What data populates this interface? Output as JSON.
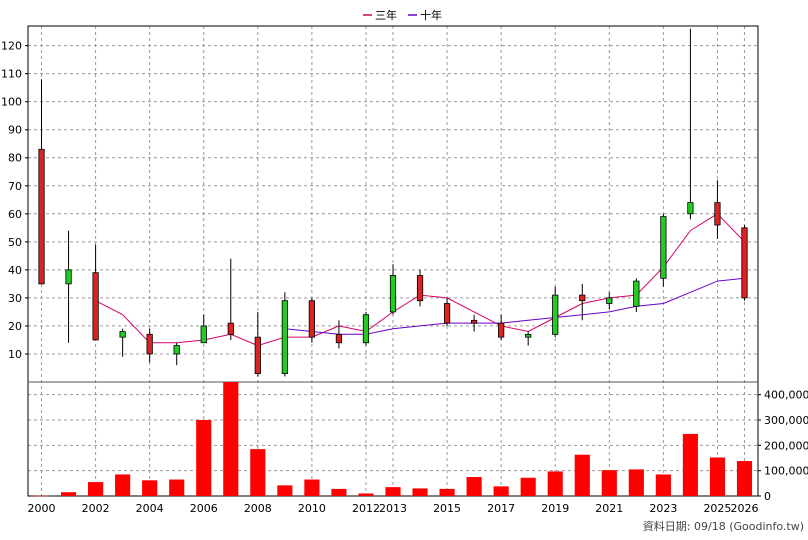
{
  "chart_data": {
    "type": "candlestick-with-volume",
    "legend": [
      {
        "name": "三年",
        "color": "#d6006b"
      },
      {
        "name": "十年",
        "color": "#6a00c8"
      }
    ],
    "credit": "資料日期: 09/18  (Goodinfo.tw)",
    "x_ticks": [
      "2000",
      "2002",
      "2004",
      "2006",
      "2008",
      "2010",
      "2012",
      "2013",
      "2015",
      "2017",
      "2019",
      "2021",
      "2023",
      "2025",
      "2026"
    ],
    "price_axis": {
      "ticks": [
        10,
        20,
        30,
        40,
        50,
        60,
        70,
        80,
        90,
        100,
        110,
        120
      ],
      "ylim": [
        0,
        127
      ]
    },
    "volume_axis": {
      "ticks": [
        0,
        100000,
        200000,
        300000,
        400000
      ],
      "tick_labels": [
        "0",
        "100,000",
        "200,000",
        "300,000",
        "400,000"
      ],
      "ylim": [
        0,
        450000
      ]
    },
    "colors": {
      "up": "#22cc22",
      "down": "#dd2222",
      "volume": "#ff0000",
      "grid": "#9a9a9a"
    },
    "candles": [
      {
        "x": "2000",
        "open": 83,
        "close": 35,
        "high": 108,
        "low": 35
      },
      {
        "x": "2001",
        "open": 35,
        "close": 40,
        "high": 54,
        "low": 14
      },
      {
        "x": "2002",
        "open": 39,
        "close": 15,
        "high": 49,
        "low": 15
      },
      {
        "x": "2003",
        "open": 16,
        "close": 18,
        "high": 19,
        "low": 9
      },
      {
        "x": "2004",
        "open": 17,
        "close": 10,
        "high": 19,
        "low": 7
      },
      {
        "x": "2005",
        "open": 10,
        "close": 13,
        "high": 14,
        "low": 6
      },
      {
        "x": "2006",
        "open": 14,
        "close": 20,
        "high": 24,
        "low": 14
      },
      {
        "x": "2007",
        "open": 21,
        "close": 17,
        "high": 44,
        "low": 15
      },
      {
        "x": "2008",
        "open": 16,
        "close": 3,
        "high": 25,
        "low": 2
      },
      {
        "x": "2009",
        "open": 3,
        "close": 29,
        "high": 32,
        "low": 2
      },
      {
        "x": "2010",
        "open": 29,
        "close": 16,
        "high": 30,
        "low": 14
      },
      {
        "x": "2011",
        "open": 17,
        "close": 14,
        "high": 22,
        "low": 12
      },
      {
        "x": "2012",
        "open": 14,
        "close": 24,
        "high": 25,
        "low": 13
      },
      {
        "x": "2013",
        "open": 25,
        "close": 38,
        "high": 42,
        "low": 24
      },
      {
        "x": "2014",
        "open": 38,
        "close": 29,
        "high": 40,
        "low": 27
      },
      {
        "x": "2015",
        "open": 28,
        "close": 21,
        "high": 30,
        "low": 20
      },
      {
        "x": "2016",
        "open": 22,
        "close": 21,
        "high": 24,
        "low": 18
      },
      {
        "x": "2017",
        "open": 21,
        "close": 16,
        "high": 24,
        "low": 15
      },
      {
        "x": "2018",
        "open": 16,
        "close": 17,
        "high": 18,
        "low": 13
      },
      {
        "x": "2019",
        "open": 17,
        "close": 31,
        "high": 34,
        "low": 16
      },
      {
        "x": "2020",
        "open": 31,
        "close": 29,
        "high": 35,
        "low": 22
      },
      {
        "x": "2021",
        "open": 28,
        "close": 30,
        "high": 32,
        "low": 26
      },
      {
        "x": "2022",
        "open": 27,
        "close": 36,
        "high": 37,
        "low": 25
      },
      {
        "x": "2023",
        "open": 37,
        "close": 59,
        "high": 60,
        "low": 34
      },
      {
        "x": "2024",
        "open": 60,
        "close": 64,
        "high": 126,
        "low": 58
      },
      {
        "x": "2025",
        "open": 64,
        "close": 56,
        "high": 72,
        "low": 51
      },
      {
        "x": "2026",
        "open": 55,
        "close": 30,
        "high": 56,
        "low": 29
      }
    ],
    "series": [
      {
        "name": "三年",
        "values": [
          null,
          null,
          29,
          24,
          14,
          14,
          15,
          17,
          13,
          16,
          16,
          20,
          18,
          25,
          31,
          30,
          25,
          20,
          18,
          23,
          28,
          30,
          31,
          41,
          54,
          60,
          50
        ]
      },
      {
        "name": "十年",
        "values": [
          null,
          null,
          null,
          null,
          null,
          null,
          null,
          null,
          null,
          19,
          18,
          17,
          17,
          19,
          20,
          21,
          21,
          21,
          22,
          23,
          24,
          25,
          27,
          28,
          32,
          36,
          37
        ]
      }
    ],
    "volume": [
      1000,
      15000,
      55000,
      85000,
      62000,
      65000,
      300000,
      450000,
      185000,
      42000,
      65000,
      28000,
      10000,
      35000,
      30000,
      28000,
      75000,
      38000,
      72000,
      97000,
      163000,
      102000,
      105000,
      85000,
      245000,
      152000,
      138000
    ]
  }
}
